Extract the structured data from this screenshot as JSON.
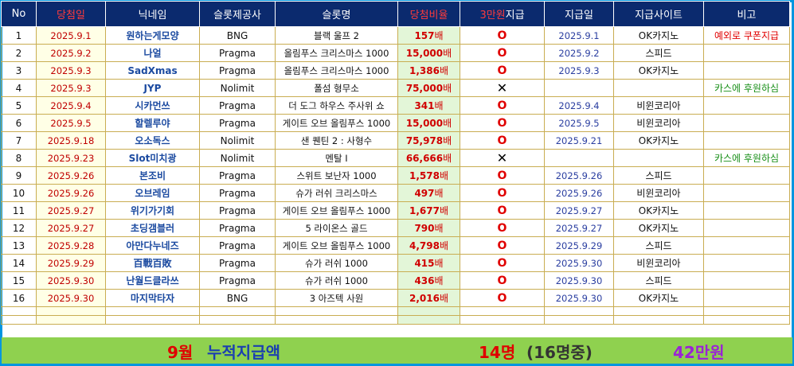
{
  "headers": [
    "No",
    "당첨일",
    "닉네임",
    "슬롯제공사",
    "슬롯명",
    "당첨비율",
    "3만원지급",
    "지급일",
    "지급사이트",
    "비고"
  ],
  "header_split": {
    "red_part": "3만원",
    "white_part": "지급"
  },
  "unit": "배",
  "rows": [
    {
      "no": "1",
      "date": "2025.9.1",
      "nick": "원하는게모양",
      "provider": "BNG",
      "slot": "블랙 울프 2",
      "rate": "157",
      "paid": "O",
      "pay_date": "2025.9.1",
      "site": "OK카지노",
      "note": "예외로 쿠폰지급",
      "note_color": "red"
    },
    {
      "no": "2",
      "date": "2025.9.2",
      "nick": "나얼",
      "provider": "Pragma",
      "slot": "올림푸스 크리스마스 1000",
      "rate": "15,000",
      "paid": "O",
      "pay_date": "2025.9.2",
      "site": "스피드",
      "note": "",
      "note_color": ""
    },
    {
      "no": "3",
      "date": "2025.9.3",
      "nick": "SadXmas",
      "provider": "Pragma",
      "slot": "올림푸스 크리스마스 1000",
      "rate": "1,386",
      "paid": "O",
      "pay_date": "2025.9.3",
      "site": "OK카지노",
      "note": "",
      "note_color": ""
    },
    {
      "no": "4",
      "date": "2025.9.3",
      "nick": "JYP",
      "provider": "Nolimit",
      "slot": "폴섬 형무소",
      "rate": "75,000",
      "paid": "X",
      "pay_date": "",
      "site": "",
      "note": "카스에 후원하심",
      "note_color": "green"
    },
    {
      "no": "5",
      "date": "2025.9.4",
      "nick": "시카먼쓰",
      "provider": "Pragma",
      "slot": "더 도그 하우스 주사위 쇼",
      "rate": "341",
      "paid": "O",
      "pay_date": "2025.9.4",
      "site": "비윈코리아",
      "note": "",
      "note_color": ""
    },
    {
      "no": "6",
      "date": "2025.9.5",
      "nick": "할렐루야",
      "provider": "Pragma",
      "slot": "게이트 오브 올림푸스 1000",
      "rate": "15,000",
      "paid": "O",
      "pay_date": "2025.9.5",
      "site": "비윈코리아",
      "note": "",
      "note_color": ""
    },
    {
      "no": "7",
      "date": "2025.9.18",
      "nick": "오소독스",
      "provider": "Nolimit",
      "slot": "샌 퀜틴 2 : 사형수",
      "rate": "75,978",
      "paid": "O",
      "pay_date": "2025.9.21",
      "site": "OK카지노",
      "note": "",
      "note_color": ""
    },
    {
      "no": "8",
      "date": "2025.9.23",
      "nick": "Slot미치광",
      "provider": "Nolimit",
      "slot": "멘탈 I",
      "rate": "66,666",
      "paid": "X",
      "pay_date": "",
      "site": "",
      "note": "카스에 후원하심",
      "note_color": "green"
    },
    {
      "no": "9",
      "date": "2025.9.26",
      "nick": "본조비",
      "provider": "Pragma",
      "slot": "스위트 보난자 1000",
      "rate": "1,578",
      "paid": "O",
      "pay_date": "2025.9.26",
      "site": "스피드",
      "note": "",
      "note_color": ""
    },
    {
      "no": "10",
      "date": "2025.9.26",
      "nick": "오브레임",
      "provider": "Pragma",
      "slot": "슈가 러쉬 크리스마스",
      "rate": "497",
      "paid": "O",
      "pay_date": "2025.9.26",
      "site": "비윈코리아",
      "note": "",
      "note_color": ""
    },
    {
      "no": "11",
      "date": "2025.9.27",
      "nick": "위기가기회",
      "provider": "Pragma",
      "slot": "게이트 오브 올림푸스 1000",
      "rate": "1,677",
      "paid": "O",
      "pay_date": "2025.9.27",
      "site": "OK카지노",
      "note": "",
      "note_color": ""
    },
    {
      "no": "12",
      "date": "2025.9.27",
      "nick": "초딩갬블러",
      "provider": "Pragma",
      "slot": "5 라이온스 골드",
      "rate": "790",
      "paid": "O",
      "pay_date": "2025.9.27",
      "site": "OK카지노",
      "note": "",
      "note_color": ""
    },
    {
      "no": "13",
      "date": "2025.9.28",
      "nick": "아만다누네즈",
      "provider": "Pragma",
      "slot": "게이트 오브 올림푸스 1000",
      "rate": "4,798",
      "paid": "O",
      "pay_date": "2025.9.29",
      "site": "스피드",
      "note": "",
      "note_color": ""
    },
    {
      "no": "14",
      "date": "2025.9.29",
      "nick": "百戰百敗",
      "provider": "Pragma",
      "slot": "슈가 러쉬 1000",
      "rate": "415",
      "paid": "O",
      "pay_date": "2025.9.30",
      "site": "비윈코리아",
      "note": "",
      "note_color": ""
    },
    {
      "no": "15",
      "date": "2025.9.30",
      "nick": "난월드클라쓰",
      "provider": "Pragma",
      "slot": "슈가 러쉬 1000",
      "rate": "436",
      "paid": "O",
      "pay_date": "2025.9.30",
      "site": "스피드",
      "note": "",
      "note_color": ""
    },
    {
      "no": "16",
      "date": "2025.9.30",
      "nick": "마지막타자",
      "provider": "BNG",
      "slot": "3 아즈텍 사원",
      "rate": "2,016",
      "paid": "O",
      "pay_date": "2025.9.30",
      "site": "OK카지노",
      "note": "",
      "note_color": ""
    }
  ],
  "footer": {
    "month": "9월",
    "label": "누적지급액",
    "count": "14명",
    "count_of": "(16명중)",
    "amount": "42만원"
  },
  "colors": {
    "header_bg": "#0b2a6e",
    "frame": "#0096e0",
    "footer_bg": "#8fd14f",
    "accent_red": "#e00000",
    "accent_purple": "#9b22d6"
  }
}
